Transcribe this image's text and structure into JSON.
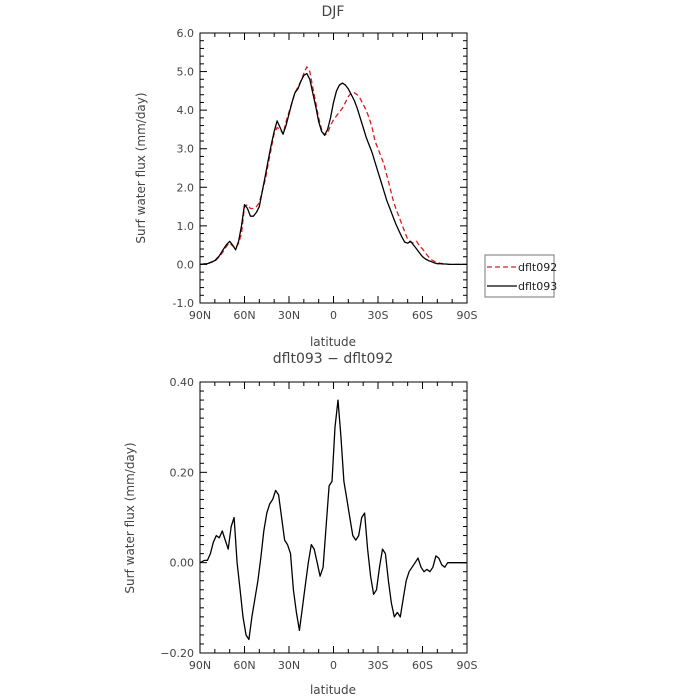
{
  "chart_data": [
    {
      "type": "line",
      "title": "DJF",
      "xlabel": "latitude",
      "ylabel": "Surf water flux (mm/day)",
      "xlim": [
        -90,
        90
      ],
      "ylim": [
        -1.0,
        6.0
      ],
      "x_direction": "90N on left to 90S on right",
      "x_tick_values": [
        -90,
        -60,
        -30,
        0,
        30,
        60,
        90
      ],
      "x_tick_labels": [
        "90N",
        "60N",
        "30N",
        "0",
        "30S",
        "60S",
        "90S"
      ],
      "y_tick_values": [
        -1.0,
        0.0,
        1.0,
        2.0,
        3.0,
        4.0,
        5.0,
        6.0
      ],
      "y_tick_labels": [
        "-1.0",
        "0.0",
        "1.0",
        "2.0",
        "3.0",
        "4.0",
        "5.0",
        "6.0"
      ],
      "grid": false,
      "legend_position": "right of plot, vertically centered",
      "series": [
        {
          "name": "dflt092",
          "color": "#d62020",
          "dash": "dashed",
          "x": [
            -90,
            -85,
            -80,
            -77,
            -75,
            -72,
            -70,
            -68,
            -66,
            -64,
            -62,
            -60,
            -58,
            -56,
            -54,
            -52,
            -50,
            -48,
            -46,
            -44,
            -42,
            -40,
            -38,
            -36,
            -34,
            -32,
            -30,
            -28,
            -26,
            -24,
            -22,
            -20,
            -18,
            -16,
            -14,
            -12,
            -10,
            -8,
            -6,
            -4,
            -2,
            0,
            2,
            4,
            6,
            8,
            10,
            12,
            14,
            16,
            18,
            20,
            22,
            24,
            26,
            28,
            30,
            32,
            34,
            36,
            38,
            40,
            42,
            44,
            46,
            48,
            50,
            52,
            54,
            56,
            58,
            60,
            62,
            64,
            66,
            68,
            70,
            72,
            74,
            76,
            78,
            80,
            82,
            84,
            86,
            88,
            90
          ],
          "y": [
            0,
            0.02,
            0.08,
            0.2,
            0.3,
            0.48,
            0.55,
            0.48,
            0.42,
            0.55,
            0.8,
            1.5,
            1.55,
            1.45,
            1.45,
            1.5,
            1.6,
            1.9,
            2.2,
            2.6,
            3.0,
            3.4,
            3.55,
            3.5,
            3.38,
            3.7,
            3.95,
            4.2,
            4.45,
            4.6,
            4.75,
            4.95,
            5.12,
            5.0,
            4.6,
            4.2,
            3.8,
            3.5,
            3.35,
            3.4,
            3.6,
            3.75,
            3.85,
            3.95,
            4.05,
            4.2,
            4.35,
            4.45,
            4.45,
            4.4,
            4.3,
            4.15,
            4.0,
            3.8,
            3.55,
            3.2,
            3.0,
            2.8,
            2.6,
            2.3,
            2.0,
            1.7,
            1.45,
            1.25,
            1.05,
            0.85,
            0.65,
            0.58,
            0.55,
            0.6,
            0.48,
            0.4,
            0.3,
            0.2,
            0.12,
            0.08,
            0.05,
            0.03,
            0.02,
            0.01,
            0,
            0,
            0,
            0,
            0,
            0,
            0
          ]
        },
        {
          "name": "dflt093",
          "color": "#000000",
          "dash": "solid",
          "x": [
            -90,
            -85,
            -80,
            -77,
            -75,
            -72,
            -70,
            -68,
            -66,
            -64,
            -62,
            -60,
            -58,
            -56,
            -54,
            -52,
            -50,
            -48,
            -46,
            -44,
            -42,
            -40,
            -38,
            -36,
            -34,
            -32,
            -30,
            -28,
            -26,
            -24,
            -22,
            -20,
            -18,
            -16,
            -14,
            -12,
            -10,
            -8,
            -6,
            -4,
            -2,
            0,
            2,
            4,
            6,
            8,
            10,
            12,
            14,
            16,
            18,
            20,
            22,
            24,
            26,
            28,
            30,
            32,
            34,
            36,
            38,
            40,
            42,
            44,
            46,
            48,
            50,
            52,
            54,
            56,
            58,
            60,
            62,
            64,
            66,
            68,
            70,
            72,
            74,
            76,
            78,
            80,
            82,
            84,
            86,
            88,
            90
          ],
          "y": [
            0,
            0.02,
            0.1,
            0.22,
            0.35,
            0.52,
            0.6,
            0.5,
            0.38,
            0.6,
            1.0,
            1.55,
            1.45,
            1.25,
            1.25,
            1.35,
            1.5,
            1.9,
            2.3,
            2.7,
            3.1,
            3.45,
            3.72,
            3.55,
            3.38,
            3.6,
            3.9,
            4.2,
            4.45,
            4.55,
            4.75,
            4.9,
            4.95,
            4.8,
            4.45,
            4.1,
            3.7,
            3.45,
            3.35,
            3.5,
            3.8,
            4.2,
            4.5,
            4.65,
            4.7,
            4.65,
            4.55,
            4.4,
            4.25,
            4.05,
            3.8,
            3.55,
            3.3,
            3.1,
            2.9,
            2.65,
            2.4,
            2.15,
            1.9,
            1.65,
            1.45,
            1.25,
            1.05,
            0.88,
            0.72,
            0.58,
            0.55,
            0.6,
            0.5,
            0.4,
            0.3,
            0.2,
            0.14,
            0.1,
            0.07,
            0.04,
            0.02,
            0.02,
            0.01,
            0.01,
            0,
            0,
            0,
            0,
            0,
            0,
            0
          ]
        }
      ]
    },
    {
      "type": "line",
      "title": "dflt093 − dflt092",
      "xlabel": "latitude",
      "ylabel": "Surf water flux (mm/day)",
      "xlim": [
        -90,
        90
      ],
      "ylim": [
        -0.2,
        0.4
      ],
      "x_direction": "90N on left to 90S on right",
      "x_tick_values": [
        -90,
        -60,
        -30,
        0,
        30,
        60,
        90
      ],
      "x_tick_labels": [
        "90N",
        "60N",
        "30N",
        "0",
        "30S",
        "60S",
        "90S"
      ],
      "y_tick_values": [
        -0.2,
        0.0,
        0.2,
        0.4
      ],
      "y_tick_labels": [
        "−0.20",
        "0.00",
        "0.20",
        "0.40"
      ],
      "grid": false,
      "series": [
        {
          "color": "#000000",
          "dash": "solid",
          "x": [
            -90,
            -87,
            -85,
            -83,
            -81,
            -79,
            -77,
            -75,
            -73,
            -71,
            -69,
            -67,
            -65,
            -63,
            -61,
            -59,
            -57,
            -55,
            -53,
            -51,
            -49,
            -47,
            -45,
            -43,
            -41,
            -39,
            -37,
            -35,
            -33,
            -31,
            -29,
            -27,
            -25,
            -23,
            -21,
            -19,
            -17,
            -15,
            -13,
            -11,
            -9,
            -7,
            -5,
            -3,
            -1,
            1,
            3,
            5,
            7,
            9,
            11,
            13,
            15,
            17,
            19,
            21,
            23,
            25,
            27,
            29,
            31,
            33,
            35,
            37,
            39,
            41,
            43,
            45,
            47,
            49,
            51,
            53,
            55,
            57,
            59,
            61,
            63,
            65,
            67,
            69,
            71,
            73,
            75,
            77,
            79,
            81,
            83,
            85,
            87,
            90
          ],
          "y": [
            0,
            0.005,
            0.005,
            0.02,
            0.045,
            0.06,
            0.055,
            0.07,
            0.05,
            0.03,
            0.08,
            0.1,
            0.0,
            -0.06,
            -0.12,
            -0.16,
            -0.17,
            -0.12,
            -0.08,
            -0.04,
            0.01,
            0.07,
            0.11,
            0.13,
            0.14,
            0.16,
            0.15,
            0.1,
            0.05,
            0.04,
            0.02,
            -0.06,
            -0.11,
            -0.15,
            -0.1,
            -0.05,
            0,
            0.04,
            0.03,
            0.0,
            -0.03,
            -0.01,
            0.08,
            0.17,
            0.18,
            0.3,
            0.36,
            0.28,
            0.18,
            0.14,
            0.1,
            0.06,
            0.05,
            0.06,
            0.1,
            0.11,
            0.03,
            -0.03,
            -0.07,
            -0.06,
            -0.01,
            0.03,
            0.02,
            -0.04,
            -0.09,
            -0.12,
            -0.11,
            -0.12,
            -0.08,
            -0.04,
            -0.02,
            -0.01,
            0.0,
            0.01,
            -0.01,
            -0.02,
            -0.015,
            -0.02,
            -0.01,
            0.015,
            0.01,
            -0.005,
            -0.01,
            0.0,
            0.0,
            0.0,
            0.0,
            0.0,
            0.0,
            0.0
          ]
        }
      ]
    }
  ]
}
